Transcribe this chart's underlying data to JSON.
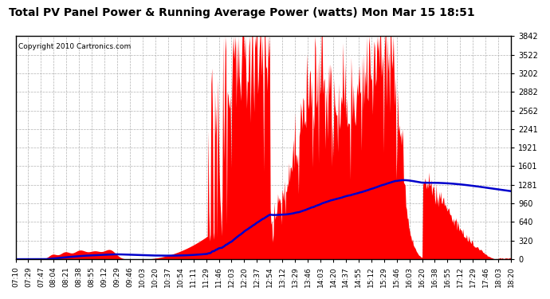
{
  "title": "Total PV Panel Power & Running Average Power (watts) Mon Mar 15 18:51",
  "copyright": "Copyright 2010 Cartronics.com",
  "background_color": "#ffffff",
  "plot_bg_color": "#ffffff",
  "grid_color": "#aaaaaa",
  "yticks": [
    0.0,
    320.2,
    640.4,
    960.5,
    1280.7,
    1600.9,
    1921.1,
    2241.3,
    2561.5,
    2881.6,
    3201.8,
    3522.0,
    3842.2
  ],
  "ymax": 3842.2,
  "ymin": 0.0,
  "fill_color": "#ff0000",
  "avg_color": "#0000cc",
  "xtick_labels": [
    "07:10",
    "07:29",
    "07:47",
    "08:04",
    "08:21",
    "08:38",
    "08:55",
    "09:12",
    "09:29",
    "09:46",
    "10:03",
    "10:20",
    "10:37",
    "10:54",
    "11:11",
    "11:29",
    "11:46",
    "12:03",
    "12:20",
    "12:37",
    "12:54",
    "13:12",
    "13:29",
    "13:46",
    "14:03",
    "14:20",
    "14:37",
    "14:55",
    "15:12",
    "15:29",
    "15:46",
    "16:03",
    "16:20",
    "16:38",
    "16:55",
    "17:12",
    "17:29",
    "17:46",
    "18:03",
    "18:20"
  ],
  "title_fontsize": 10,
  "tick_fontsize": 7,
  "copyright_fontsize": 6.5
}
